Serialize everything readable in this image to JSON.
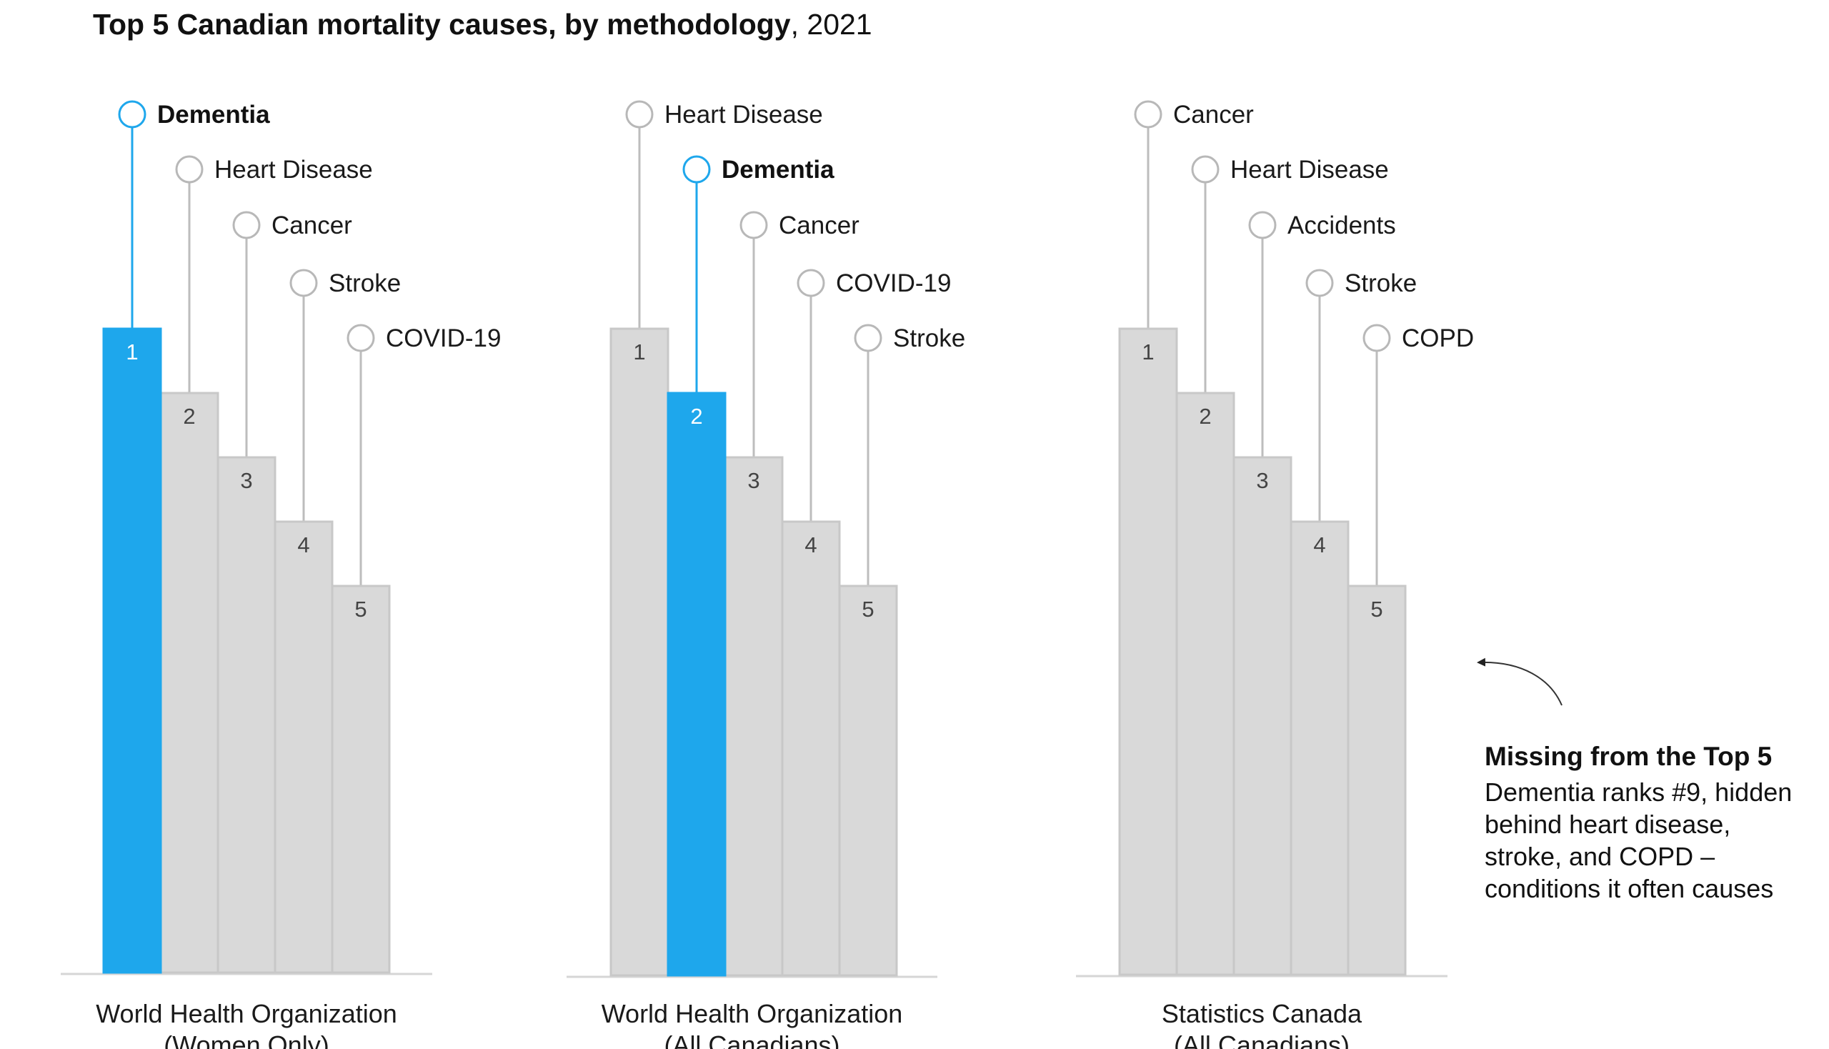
{
  "chart_data": {
    "type": "bar",
    "title": "Top 5 Canadian mortality causes, by methodology",
    "year": "2021",
    "highlight_color": "#1ea7ec",
    "bar_color": "#d9d9d9",
    "bar_stroke_color": "#c8c8c8",
    "stem_color": "#bdbdbd",
    "value_meaning": "rank (1 = leading cause)",
    "groups": [
      {
        "name": "World Health Organization",
        "subtitle": "(Women Only)",
        "bars": [
          {
            "rank": "1",
            "cause": "Dementia",
            "highlight": true
          },
          {
            "rank": "2",
            "cause": "Heart Disease",
            "highlight": false
          },
          {
            "rank": "3",
            "cause": "Cancer",
            "highlight": false
          },
          {
            "rank": "4",
            "cause": "Stroke",
            "highlight": false
          },
          {
            "rank": "5",
            "cause": "COVID-19",
            "highlight": false
          }
        ]
      },
      {
        "name": "World Health Organization",
        "subtitle": "(All Canadians)",
        "bars": [
          {
            "rank": "1",
            "cause": "Heart Disease",
            "highlight": false
          },
          {
            "rank": "2",
            "cause": "Dementia",
            "highlight": true
          },
          {
            "rank": "3",
            "cause": "Cancer",
            "highlight": false
          },
          {
            "rank": "4",
            "cause": "COVID-19",
            "highlight": false
          },
          {
            "rank": "5",
            "cause": "Stroke",
            "highlight": false
          }
        ]
      },
      {
        "name": "Statistics Canada",
        "subtitle": "(All Canadians)",
        "bars": [
          {
            "rank": "1",
            "cause": "Cancer",
            "highlight": false
          },
          {
            "rank": "2",
            "cause": "Heart Disease",
            "highlight": false
          },
          {
            "rank": "3",
            "cause": "Accidents",
            "highlight": false
          },
          {
            "rank": "4",
            "cause": "Stroke",
            "highlight": false
          },
          {
            "rank": "5",
            "cause": "COPD",
            "highlight": false
          }
        ]
      }
    ]
  },
  "note": {
    "heading": "Missing from the Top 5",
    "body": "Dementia ranks #9, hidden behind heart disease, stroke, and COPD – conditions it often causes"
  }
}
